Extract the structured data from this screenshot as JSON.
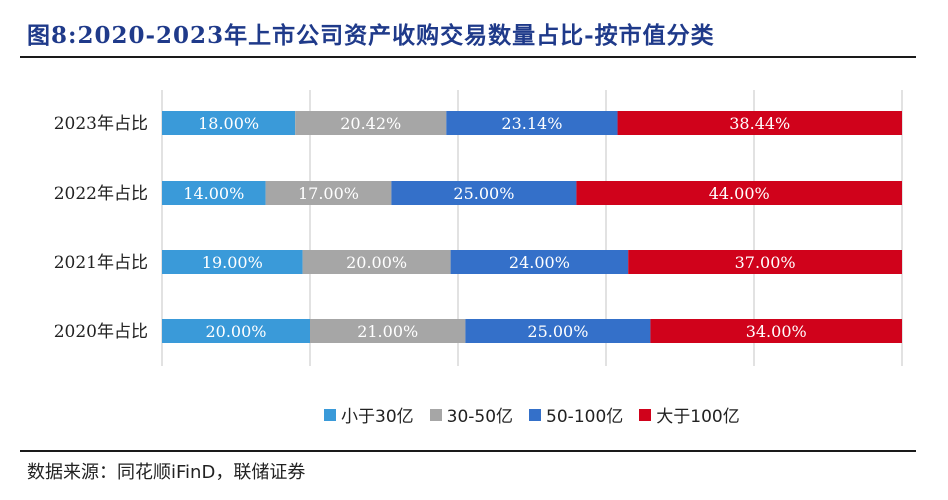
{
  "title": "图8:2020-2023年上市公司资产收购交易数量占比-按市值分类",
  "source": "数据来源：同花顺iFinD，联储证券",
  "chart_data": {
    "type": "bar",
    "orientation": "horizontal",
    "stacked": true,
    "categories": [
      "2023年占比",
      "2022年占比",
      "2021年占比",
      "2020年占比"
    ],
    "series": [
      {
        "name": "小于30亿",
        "color": "#3a9ad9",
        "values": [
          18.0,
          14.0,
          19.0,
          20.0
        ],
        "labels": [
          "18.00%",
          "14.00%",
          "19.00%",
          "20.00%"
        ]
      },
      {
        "name": "30-50亿",
        "color": "#a6a6a6",
        "values": [
          20.42,
          17.0,
          20.0,
          21.0
        ],
        "labels": [
          "20.42%",
          "17.00%",
          "20.00%",
          "21.00%"
        ]
      },
      {
        "name": "50-100亿",
        "color": "#3470c9",
        "values": [
          23.14,
          25.0,
          24.0,
          25.0
        ],
        "labels": [
          "23.14%",
          "25.00%",
          "24.00%",
          "25.00%"
        ]
      },
      {
        "name": "大于100亿",
        "color": "#d0021b",
        "values": [
          38.44,
          44.0,
          37.0,
          34.0
        ],
        "labels": [
          "38.44%",
          "44.00%",
          "37.00%",
          "34.00%"
        ]
      }
    ],
    "xlim": [
      0,
      100
    ],
    "grid": true,
    "legend_position": "bottom"
  }
}
